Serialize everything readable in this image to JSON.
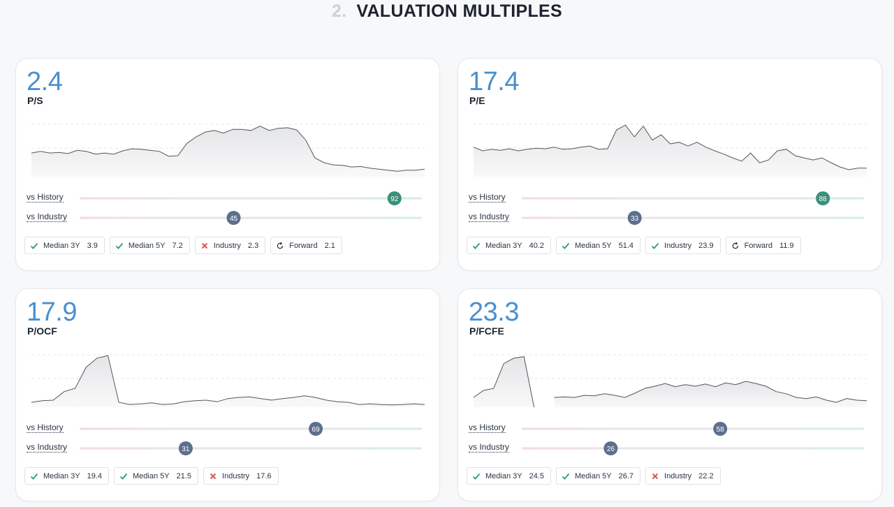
{
  "header": {
    "number": "2.",
    "title": "VALUATION MULTIPLES"
  },
  "slider_lim": [
    0,
    100
  ],
  "cards": [
    {
      "value": 2.4,
      "label": "P/S",
      "sparkline": {
        "ylim": [
          0,
          100
        ],
        "values": [
          44,
          47,
          44,
          45,
          43,
          49,
          47,
          42,
          44,
          42,
          48,
          52,
          51,
          49,
          47,
          38,
          39,
          62,
          74,
          83,
          86,
          81,
          88,
          88,
          86,
          94,
          86,
          90,
          91,
          87,
          68,
          35,
          26,
          22,
          21,
          18,
          19,
          16,
          14,
          12,
          10,
          12,
          12,
          14
        ]
      },
      "sliders": [
        {
          "label": "vs History",
          "value": 92,
          "color": "#3b8f7b"
        },
        {
          "label": "vs Industry",
          "value": 45,
          "color": "#5d6f8e"
        }
      ],
      "badges": [
        {
          "status": "check",
          "label": "Median 3Y",
          "value": 3.9
        },
        {
          "status": "check",
          "label": "Median 5Y",
          "value": 7.2
        },
        {
          "status": "cross",
          "label": "Industry",
          "value": 2.3
        },
        {
          "status": "forward",
          "label": "Forward",
          "value": 2.1
        }
      ]
    },
    {
      "value": 17.4,
      "label": "P/E",
      "sparkline": {
        "ylim": [
          0,
          100
        ],
        "values": [
          55,
          48,
          51,
          49,
          52,
          48,
          51,
          53,
          52,
          55,
          51,
          52,
          55,
          57,
          51,
          52,
          87,
          96,
          74,
          94,
          68,
          78,
          61,
          64,
          57,
          64,
          55,
          48,
          42,
          35,
          29,
          44,
          26,
          31,
          48,
          51,
          39,
          35,
          31,
          35,
          26,
          18,
          13,
          16,
          16
        ]
      },
      "sliders": [
        {
          "label": "vs History",
          "value": 88,
          "color": "#3b8f7b"
        },
        {
          "label": "vs Industry",
          "value": 33,
          "color": "#5d6f8e"
        }
      ],
      "badges": [
        {
          "status": "check",
          "label": "Median 3Y",
          "value": 40.2
        },
        {
          "status": "check",
          "label": "Median 5Y",
          "value": 51.4
        },
        {
          "status": "check",
          "label": "Industry",
          "value": 23.9
        },
        {
          "status": "forward",
          "label": "Forward",
          "value": 11.9
        }
      ]
    },
    {
      "value": 17.9,
      "label": "P/OCF",
      "sparkline": {
        "ylim": [
          0,
          100
        ],
        "values": [
          9,
          12,
          13,
          29,
          35,
          74,
          91,
          96,
          9,
          5,
          6,
          8,
          5,
          6,
          10,
          12,
          13,
          10,
          16,
          18,
          19,
          16,
          13,
          16,
          18,
          21,
          18,
          13,
          10,
          9,
          5,
          6,
          5,
          4,
          5,
          6,
          5
        ]
      },
      "sliders": [
        {
          "label": "vs History",
          "value": 69,
          "color": "#5d6f8e"
        },
        {
          "label": "vs Industry",
          "value": 31,
          "color": "#5d6f8e"
        }
      ],
      "badges": [
        {
          "status": "check",
          "label": "Median 3Y",
          "value": 19.4
        },
        {
          "status": "check",
          "label": "Median 5Y",
          "value": 21.5
        },
        {
          "status": "cross",
          "label": "Industry",
          "value": 17.6
        }
      ]
    },
    {
      "value": 23.3,
      "label": "P/FCFE",
      "sparkline": {
        "ylim": [
          0,
          100
        ],
        "values": [
          18,
          31,
          35,
          81,
          91,
          94,
          0,
          null,
          18,
          19,
          18,
          22,
          21,
          25,
          22,
          18,
          26,
          35,
          39,
          44,
          38,
          42,
          39,
          43,
          38,
          45,
          42,
          48,
          44,
          39,
          29,
          25,
          18,
          16,
          19,
          13,
          9,
          16,
          13,
          12
        ]
      },
      "sliders": [
        {
          "label": "vs History",
          "value": 58,
          "color": "#5d6f8e"
        },
        {
          "label": "vs Industry",
          "value": 26,
          "color": "#5d6f8e"
        }
      ],
      "badges": [
        {
          "status": "check",
          "label": "Median 3Y",
          "value": 24.5
        },
        {
          "status": "check",
          "label": "Median 5Y",
          "value": 26.7
        },
        {
          "status": "cross",
          "label": "Industry",
          "value": 22.2
        }
      ]
    }
  ]
}
